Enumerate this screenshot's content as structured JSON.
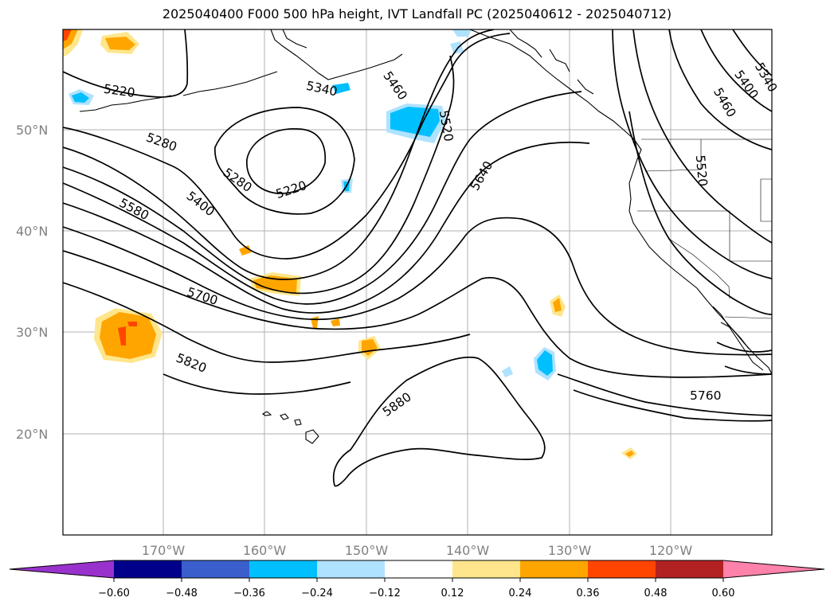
{
  "title": "2025040400 F000 500 hPa height, IVT Landfall PC (2025040612 - 2025040712)",
  "map": {
    "lat_labels": [
      "50°N",
      "40°N",
      "30°N",
      "20°N"
    ],
    "lon_labels": [
      "170°W",
      "160°W",
      "150°W",
      "140°W",
      "130°W",
      "120°W"
    ],
    "contour_labels": [
      "5220",
      "5340",
      "5460",
      "5520",
      "5280",
      "5220",
      "5280",
      "5400",
      "5580",
      "5640",
      "5700",
      "5820",
      "5880",
      "5760",
      "5460",
      "5400",
      "5340",
      "5520"
    ]
  },
  "colorbar": {
    "tick_labels": [
      "−0.60",
      "−0.48",
      "−0.36",
      "−0.24",
      "−0.12",
      "0.12",
      "0.24",
      "0.36",
      "0.48",
      "0.60"
    ],
    "colors": [
      "#9932cc",
      "#00008b",
      "#3a5fcd",
      "#00bfff",
      "#afe2ff",
      "#ffffff",
      "#ffe68c",
      "#ffa500",
      "#ff4500",
      "#b22222",
      "#ff82ab"
    ]
  }
}
